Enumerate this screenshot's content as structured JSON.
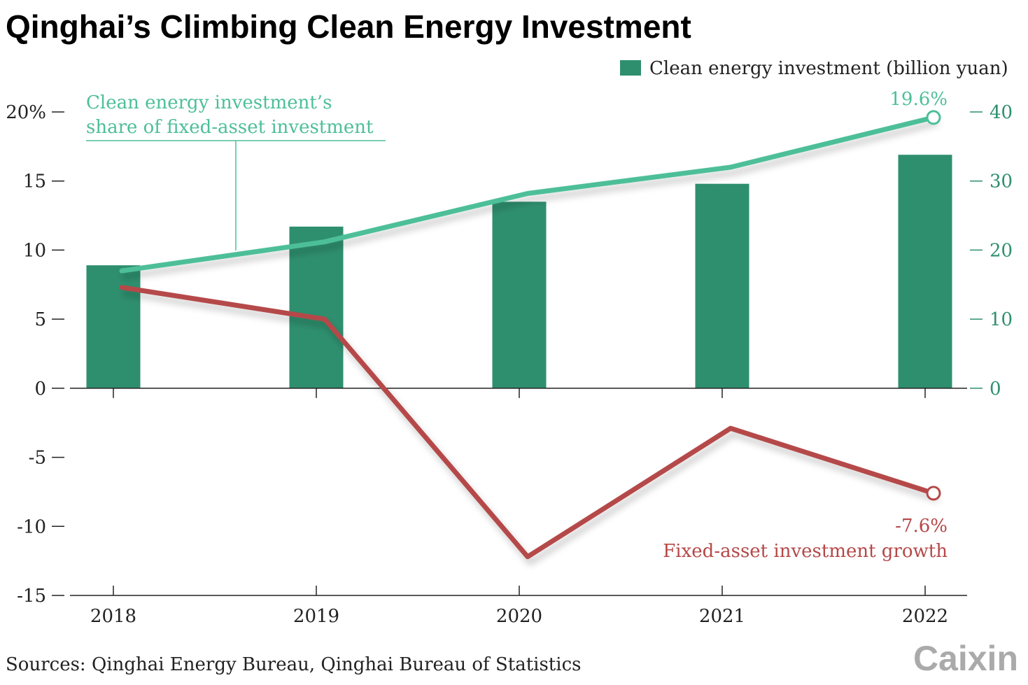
{
  "title": "Qinghai’s Climbing Clean Energy Investment",
  "legend": {
    "bar_label": "Clean energy investment (billion yuan)"
  },
  "source": "Sources: Qinghai Energy Bureau, Qinghai Bureau of Statistics",
  "logo": "Caixin",
  "colors": {
    "bar": "#2e8f6e",
    "share_line": "#4dbf98",
    "growth_line": "#b54848",
    "axis": "#222222",
    "right_axis_text": "#2e8f6e",
    "logo": "#aaaaaa"
  },
  "chart_data": {
    "type": "bar",
    "categories": [
      "2018",
      "2019",
      "2020",
      "2021",
      "2022"
    ],
    "left_axis": {
      "ticks": [
        "20%",
        "15",
        "10",
        "5",
        "0",
        "-5",
        "-10",
        "-15"
      ],
      "ylim": [
        -15,
        20
      ]
    },
    "right_axis": {
      "ticks": [
        "40",
        "30",
        "20",
        "10",
        "0"
      ],
      "ylim": [
        0,
        40
      ]
    },
    "series": [
      {
        "name": "Clean energy investment (billion yuan)",
        "kind": "bar",
        "axis": "right",
        "values": [
          17.8,
          23.4,
          27.0,
          29.6,
          33.8
        ]
      },
      {
        "name": "Clean energy investment’s share of fixed-asset investment",
        "name_lines": [
          "Clean energy investment’s",
          "share of fixed-asset investment"
        ],
        "kind": "line",
        "axis": "left",
        "values": [
          8.5,
          10.6,
          14.1,
          16.0,
          19.6
        ]
      },
      {
        "name": "Fixed-asset investment growth",
        "kind": "line",
        "axis": "left",
        "values": [
          7.3,
          5.0,
          -12.2,
          -2.9,
          -7.6
        ]
      }
    ],
    "annotations": {
      "share_end": "19.6%",
      "growth_end": "-7.6%"
    }
  }
}
